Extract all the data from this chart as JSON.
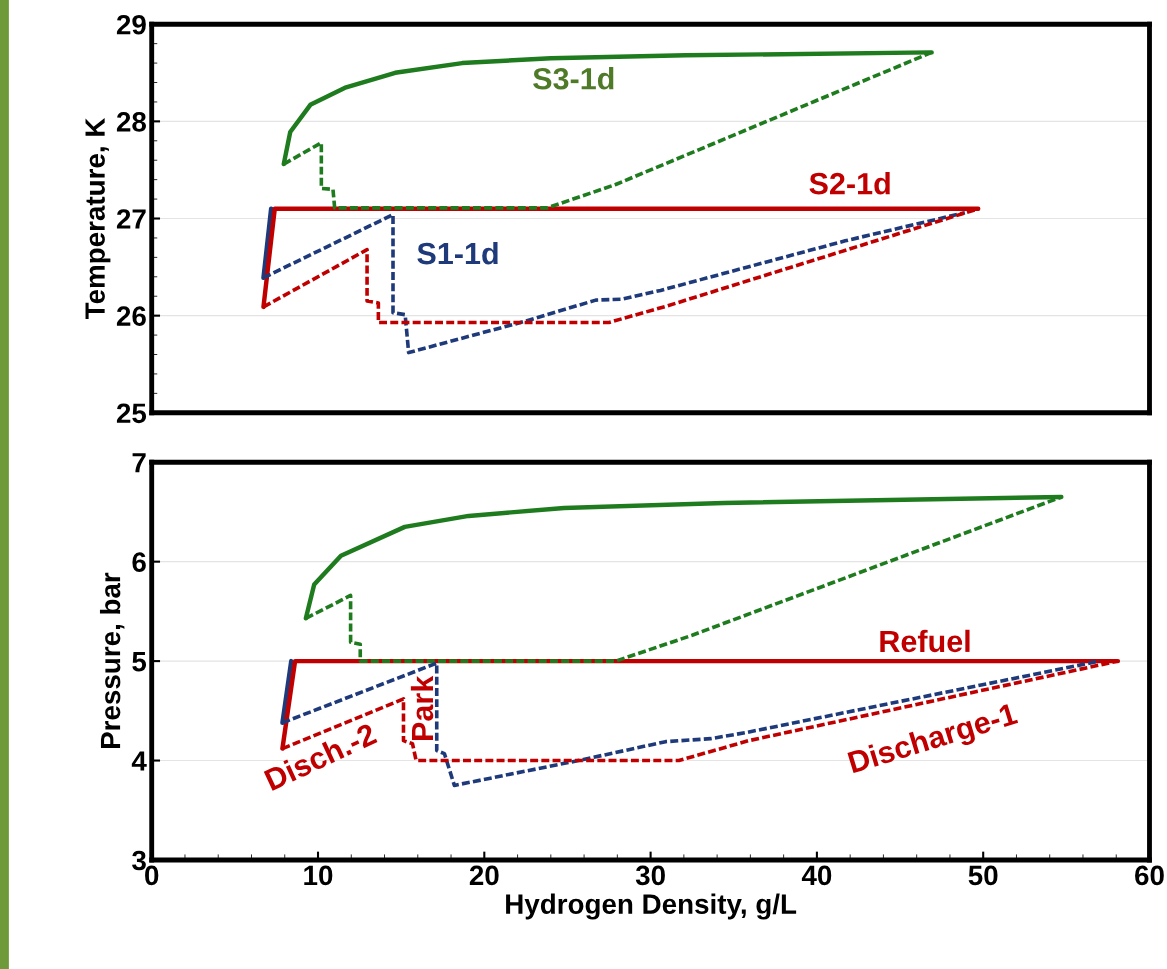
{
  "chart_data": [
    {
      "type": "line",
      "ylabel": "Temperature, K",
      "xlim": [
        0,
        60
      ],
      "xticks": [
        0,
        10,
        20,
        30,
        40,
        50,
        60
      ],
      "ylim": [
        25,
        29
      ],
      "yticks": [
        25,
        26,
        27,
        28,
        29
      ],
      "tick_labels": "y",
      "grid": "y",
      "legend": false,
      "marker": "none",
      "series": [
        {
          "color": "#1e7b1e",
          "line_style": "solid",
          "x": [
            7.94,
            8.33,
            9.54,
            11.69,
            14.64,
            18.67,
            24.0,
            32.1,
            46.9
          ],
          "values": [
            27.56,
            27.89,
            28.17,
            28.35,
            28.5,
            28.6,
            28.65,
            28.68,
            28.71
          ]
        },
        {
          "color": "#1e7b1e",
          "line_style": "dashed",
          "x": [
            7.94,
            10.2,
            10.2,
            10.9,
            11.0,
            23.8,
            27.9,
            46.9
          ],
          "values": [
            27.56,
            27.78,
            27.31,
            27.3,
            27.11,
            27.11,
            27.35,
            28.71
          ]
        },
        {
          "color": "#1f3a7a",
          "line_style": "solid",
          "x": [
            6.72,
            7.18
          ],
          "values": [
            26.39,
            27.1
          ]
        },
        {
          "color": "#1f3a7a",
          "line_style": "dashed",
          "x": [
            6.72,
            14.51,
            14.51,
            15.24,
            15.45,
            22.4,
            26.7,
            28.3,
            30.6,
            41.7,
            48.9
          ],
          "values": [
            26.39,
            27.04,
            26.03,
            26.01,
            25.62,
            25.94,
            26.16,
            26.17,
            26.26,
            26.77,
            27.06
          ]
        },
        {
          "color": "#c00000",
          "line_style": "solid",
          "x": [
            6.72,
            7.4,
            49.7
          ],
          "values": [
            26.09,
            27.1,
            27.1
          ]
        },
        {
          "color": "#c00000",
          "line_style": "dashed",
          "x": [
            6.72,
            12.95,
            12.95,
            13.63,
            13.63,
            27.5,
            31.0,
            49.7
          ],
          "values": [
            26.09,
            26.68,
            26.15,
            26.13,
            25.93,
            25.93,
            26.1,
            27.1
          ]
        }
      ],
      "annotations": [
        "S3-1d",
        "S2-1d",
        "S1-1d"
      ]
    },
    {
      "type": "line",
      "xlabel": "Hydrogen Density, g/L",
      "ylabel": "Pressure, bar",
      "xlim": [
        0,
        60
      ],
      "xticks": [
        0,
        10,
        20,
        30,
        40,
        50,
        60
      ],
      "ylim": [
        3,
        7
      ],
      "yticks": [
        3,
        4,
        5,
        6,
        7
      ],
      "grid": "y",
      "legend": false,
      "marker": "none",
      "series": [
        {
          "color": "#1e7b1e",
          "line_style": "solid",
          "x": [
            9.27,
            9.77,
            11.38,
            15.22,
            19.06,
            24.8,
            34.4,
            54.7
          ],
          "values": [
            5.43,
            5.77,
            6.06,
            6.35,
            6.46,
            6.54,
            6.59,
            6.65
          ]
        },
        {
          "color": "#1e7b1e",
          "line_style": "dashed",
          "x": [
            9.27,
            11.96,
            11.96,
            12.54,
            12.54,
            27.9,
            32.5,
            54.7
          ],
          "values": [
            5.43,
            5.66,
            5.19,
            5.17,
            5.0,
            5.0,
            5.26,
            6.65
          ]
        },
        {
          "color": "#1f3a7a",
          "line_style": "solid",
          "x": [
            7.86,
            8.39
          ],
          "values": [
            4.38,
            5.0
          ]
        },
        {
          "color": "#1f3a7a",
          "line_style": "dashed",
          "x": [
            7.86,
            17.14,
            17.14,
            17.6,
            18.2,
            25.96,
            30.9,
            33.6,
            35.7,
            57.0
          ],
          "values": [
            4.38,
            4.98,
            4.1,
            4.07,
            3.75,
            4.01,
            4.19,
            4.22,
            4.28,
            5.0
          ]
        },
        {
          "color": "#c00000",
          "line_style": "solid",
          "x": [
            7.86,
            8.62,
            58.1
          ],
          "values": [
            4.12,
            5.0,
            5.0
          ]
        },
        {
          "color": "#c00000",
          "line_style": "dashed",
          "x": [
            7.86,
            15.14,
            15.14,
            15.68,
            15.9,
            31.7,
            35.9,
            58.1
          ],
          "values": [
            4.12,
            4.62,
            4.2,
            4.17,
            4.0,
            4.0,
            4.2,
            5.0
          ]
        }
      ],
      "annotations": [
        "Refuel",
        "Discharge-1",
        "Disch.-2",
        "Park"
      ]
    }
  ]
}
